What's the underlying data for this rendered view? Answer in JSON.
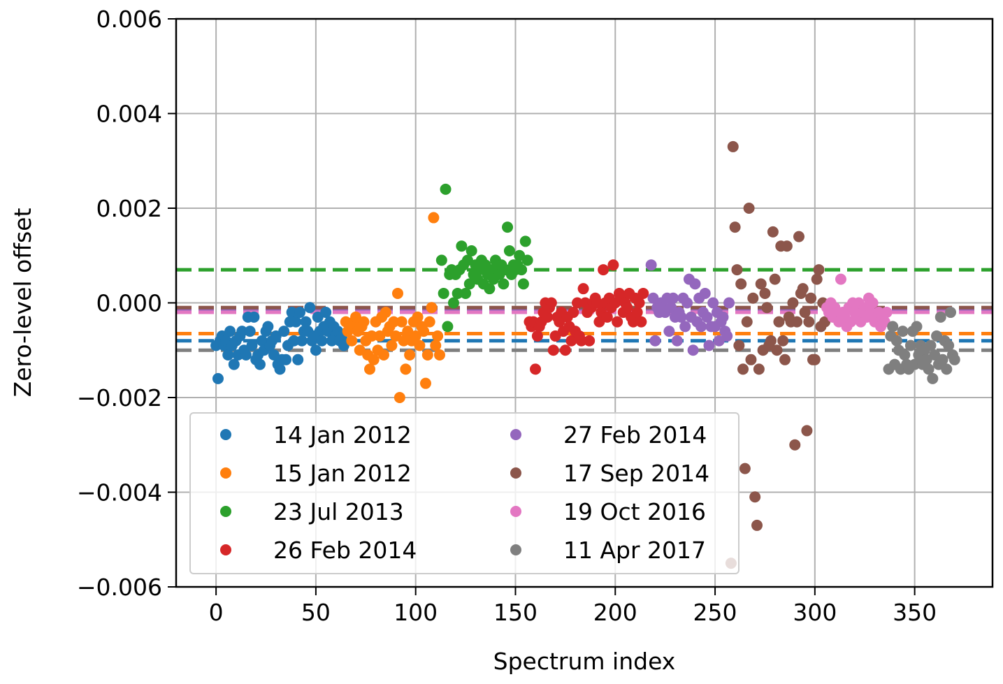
{
  "chart_data": {
    "type": "scatter",
    "title": "",
    "xlabel": "Spectrum index",
    "ylabel": "Zero-level offset",
    "xlim": [
      -20,
      389
    ],
    "ylim": [
      -0.006,
      0.006
    ],
    "xticks": [
      0,
      50,
      100,
      150,
      200,
      250,
      300,
      350
    ],
    "yticks": [
      -0.006,
      -0.004,
      -0.002,
      0.0,
      0.002,
      0.004,
      0.006
    ],
    "xtick_labels": [
      "0",
      "50",
      "100",
      "150",
      "200",
      "250",
      "300",
      "350"
    ],
    "ytick_labels": [
      "−0.006",
      "−0.004",
      "−0.002",
      "0.000",
      "0.002",
      "0.004",
      "0.006"
    ],
    "grid": true,
    "legend": {
      "placement": "lower-left",
      "columns": 2
    },
    "series": [
      {
        "name": "14 Jan 2012",
        "color": "#1f77b4",
        "mean": -0.0008,
        "x": [
          0,
          1,
          2,
          3,
          4,
          5,
          6,
          7,
          8,
          9,
          10,
          11,
          12,
          13,
          14,
          15,
          16,
          17,
          18,
          19,
          20,
          21,
          22,
          23,
          24,
          25,
          26,
          27,
          28,
          29,
          30,
          31,
          32,
          33,
          34,
          35,
          36,
          37,
          38,
          39,
          40,
          41,
          42,
          43,
          44,
          45,
          46,
          47,
          48,
          49,
          50,
          51,
          52,
          53,
          54,
          55,
          56,
          57,
          58,
          59,
          60,
          61,
          62,
          63,
          64
        ],
        "y": [
          -0.0009,
          -0.0016,
          -0.0008,
          -0.0007,
          -0.0009,
          -0.0008,
          -0.0011,
          -0.0006,
          -0.0009,
          -0.0013,
          -0.0008,
          -0.0011,
          -0.0007,
          -0.0006,
          -0.001,
          -0.0011,
          -0.0003,
          -0.0006,
          -0.0009,
          -0.0003,
          -0.0012,
          -0.0011,
          -0.0013,
          -0.0008,
          -0.001,
          -0.0006,
          -0.0005,
          -0.0009,
          -0.0008,
          -0.0011,
          -0.0007,
          -0.0013,
          -0.0014,
          -0.0012,
          -0.0006,
          -0.0012,
          -0.0009,
          -0.0004,
          -0.0002,
          -0.0008,
          -0.0004,
          -0.0012,
          -0.0002,
          -0.0008,
          -0.0006,
          -0.0004,
          -0.0006,
          -0.0001,
          -0.0008,
          -0.0007,
          -0.001,
          -0.0003,
          -0.0006,
          -0.0008,
          -0.0005,
          -0.0002,
          -0.0006,
          -0.0004,
          -0.0008,
          -0.0005,
          -0.0007,
          -0.0006,
          -0.0008,
          -0.0007,
          -0.0009
        ]
      },
      {
        "name": "15 Jan 2012",
        "color": "#ff7f0e",
        "mean": -0.00065,
        "x": [
          65,
          66,
          67,
          68,
          69,
          70,
          71,
          72,
          73,
          74,
          75,
          76,
          77,
          78,
          79,
          80,
          81,
          82,
          83,
          84,
          85,
          86,
          87,
          88,
          89,
          90,
          91,
          92,
          93,
          94,
          95,
          96,
          97,
          98,
          99,
          100,
          101,
          102,
          103,
          104,
          105,
          106,
          107,
          108,
          109,
          110,
          111,
          112
        ],
        "y": [
          -0.0004,
          -0.0006,
          -0.0005,
          -0.0008,
          -0.0004,
          -0.0003,
          -0.0006,
          -0.001,
          -0.0005,
          -0.0004,
          -0.0008,
          -0.0011,
          -0.0014,
          -0.0007,
          -0.0012,
          -0.0004,
          -0.001,
          -0.0007,
          -0.0003,
          -0.0011,
          -0.0002,
          -0.0006,
          -0.0005,
          -0.0009,
          -0.0004,
          -0.0007,
          0.0002,
          -0.002,
          -0.0004,
          -0.0008,
          -0.0014,
          -0.0006,
          -0.0011,
          -0.0008,
          -0.0004,
          -0.0007,
          -0.0003,
          -0.0009,
          -0.0005,
          -0.0006,
          -0.0017,
          -0.0011,
          -0.0004,
          -0.0001,
          0.0018,
          -0.0009,
          -0.0007,
          -0.0011
        ]
      },
      {
        "name": "23 Jul 2013",
        "color": "#2ca02c",
        "mean": 0.0007,
        "x": [
          113,
          114,
          115,
          116,
          117,
          118,
          119,
          120,
          121,
          122,
          123,
          124,
          125,
          126,
          127,
          128,
          129,
          130,
          131,
          132,
          133,
          134,
          135,
          136,
          137,
          138,
          139,
          140,
          141,
          142,
          143,
          144,
          145,
          146,
          147,
          148,
          149,
          150,
          151,
          152,
          153,
          154,
          155,
          156
        ],
        "y": [
          0.0009,
          0.0002,
          0.0024,
          -0.0005,
          0.0006,
          0.0007,
          0.0,
          0.0006,
          0.0002,
          0.0007,
          0.0012,
          0.0008,
          0.0002,
          0.0009,
          0.0004,
          0.0011,
          0.0006,
          0.0008,
          0.0005,
          0.0007,
          0.0009,
          0.0004,
          0.0008,
          0.0006,
          0.0003,
          0.0007,
          0.0005,
          0.0009,
          0.0008,
          0.0006,
          0.0008,
          0.0004,
          0.0007,
          0.0016,
          0.0011,
          0.0006,
          0.0008,
          0.0007,
          0.0008,
          0.001,
          0.0007,
          0.0004,
          0.0013,
          0.0009
        ]
      },
      {
        "name": "26 Feb 2014",
        "color": "#d62728",
        "mean": -0.0002,
        "x": [
          157,
          158,
          159,
          160,
          161,
          162,
          163,
          164,
          165,
          166,
          167,
          168,
          169,
          170,
          171,
          172,
          173,
          174,
          175,
          176,
          177,
          178,
          179,
          180,
          181,
          182,
          183,
          184,
          185,
          186,
          187,
          188,
          189,
          190,
          191,
          192,
          193,
          194,
          195,
          196,
          197,
          198,
          199,
          200,
          201,
          202,
          203,
          204,
          205,
          206,
          207,
          208,
          209,
          210,
          211,
          212,
          213,
          214
        ],
        "y": [
          -0.0004,
          -0.0005,
          -0.0004,
          -0.0014,
          -0.0007,
          -0.0005,
          -0.0004,
          -0.0002,
          0.0,
          -0.0003,
          -0.0001,
          0.0,
          -0.001,
          -0.0007,
          -0.0003,
          -0.0004,
          -0.0002,
          -0.0006,
          -0.001,
          -0.0003,
          -0.0005,
          -0.0008,
          -0.0002,
          -0.0006,
          0.0,
          -0.0007,
          -0.0008,
          0.0003,
          0.0,
          -0.0002,
          -0.0008,
          -0.0001,
          0.0,
          0.0001,
          0.0,
          -0.0004,
          -0.0002,
          0.0007,
          0.0,
          -0.0003,
          0.0001,
          -0.0001,
          0.0008,
          0.0,
          -0.0004,
          0.0002,
          0.0001,
          -0.0002,
          0.0,
          -0.0001,
          0.0002,
          -0.0003,
          -0.0004,
          0.0001,
          -0.0002,
          0.0,
          -0.0004,
          0.0002
        ]
      },
      {
        "name": "27 Feb 2014",
        "color": "#9467bd",
        "mean": -0.00015,
        "x": [
          218,
          219,
          220,
          221,
          222,
          223,
          224,
          225,
          226,
          227,
          228,
          229,
          230,
          231,
          232,
          233,
          234,
          235,
          236,
          237,
          238,
          239,
          240,
          241,
          242,
          243,
          244,
          245,
          246,
          247,
          248,
          249,
          250,
          251,
          252,
          253,
          254,
          255,
          256,
          257
        ],
        "y": [
          0.0008,
          0.0001,
          -0.0008,
          -0.0001,
          -0.0002,
          0.0,
          -0.0001,
          -0.0002,
          0.0001,
          -0.0006,
          -0.0001,
          0.0001,
          -0.0003,
          -0.0008,
          -0.0002,
          -0.0003,
          0.0001,
          -0.0005,
          0.0,
          0.0005,
          -0.0003,
          -0.001,
          0.0004,
          -0.0004,
          0.0001,
          -0.0005,
          -0.0002,
          0.0002,
          -0.0003,
          -0.0009,
          -0.0005,
          0.0,
          -0.0005,
          -0.0002,
          -0.0008,
          -0.0004,
          -0.0003,
          -0.0006,
          -0.0007,
          0.0
        ]
      },
      {
        "name": "17 Sep 2014",
        "color": "#8c564b",
        "mean": -0.0001,
        "x": [
          258,
          259,
          260,
          261,
          262,
          263,
          264,
          265,
          266,
          267,
          268,
          269,
          270,
          271,
          272,
          273,
          274,
          275,
          276,
          277,
          278,
          279,
          280,
          281,
          282,
          283,
          284,
          285,
          286,
          287,
          288,
          289,
          290,
          291,
          292,
          293,
          294,
          295,
          296,
          297,
          298,
          299,
          300,
          301,
          302,
          303,
          304,
          305
        ],
        "y": [
          -0.0055,
          0.0033,
          0.0016,
          0.0007,
          -0.0009,
          0.0004,
          -0.0014,
          -0.0035,
          -0.0004,
          0.002,
          -0.0012,
          0.0001,
          -0.0041,
          -0.0047,
          -0.0014,
          0.0004,
          -0.001,
          0.0002,
          -0.0001,
          -0.0009,
          -0.0008,
          0.0015,
          0.0005,
          -0.001,
          -0.0004,
          0.0012,
          -0.0008,
          -0.0012,
          0.0012,
          -0.0003,
          -0.0004,
          0.0,
          -0.003,
          -0.0004,
          0.0014,
          0.0002,
          0.0003,
          -0.0002,
          -0.0027,
          -0.0004,
          0.0001,
          -0.0012,
          -0.0012,
          0.0005,
          0.0007,
          -0.0005,
          0.0,
          -0.0004
        ]
      },
      {
        "name": "19 Oct 2016",
        "color": "#e377c2",
        "mean": -0.0002,
        "x": [
          306,
          307,
          308,
          309,
          310,
          311,
          312,
          313,
          314,
          315,
          316,
          317,
          318,
          319,
          320,
          321,
          322,
          323,
          324,
          325,
          326,
          327,
          328,
          329,
          330,
          331,
          332,
          333,
          334,
          335,
          336
        ],
        "y": [
          -0.0001,
          -0.0002,
          0.0,
          -0.0003,
          -0.0001,
          -0.0002,
          -0.0004,
          0.0005,
          -0.0002,
          -0.0003,
          -0.0005,
          -0.0001,
          -0.0004,
          0.0,
          -0.0002,
          -0.0003,
          0.0,
          -0.0004,
          -0.0002,
          -0.0001,
          -0.0003,
          0.0001,
          -0.0002,
          0.0,
          -0.0004,
          -0.0003,
          -0.0002,
          -0.0005,
          -0.0003,
          -0.0004,
          -0.0002
        ]
      },
      {
        "name": "11 Apr 2017",
        "color": "#7f7f7f",
        "mean": -0.001,
        "x": [
          337,
          338,
          339,
          340,
          341,
          342,
          343,
          344,
          345,
          346,
          347,
          348,
          349,
          350,
          351,
          352,
          353,
          354,
          355,
          356,
          357,
          358,
          359,
          360,
          361,
          362,
          363,
          364,
          365,
          366,
          367,
          368,
          369,
          370
        ],
        "y": [
          -0.0014,
          -0.0007,
          -0.0005,
          -0.0013,
          -0.0008,
          -0.001,
          -0.0014,
          -0.0006,
          -0.0011,
          -0.0013,
          -0.0014,
          -0.0009,
          -0.0006,
          -0.0013,
          -0.0005,
          -0.0011,
          -0.0009,
          -0.0013,
          -0.001,
          -0.0012,
          -0.0014,
          -0.0009,
          -0.0016,
          -0.0011,
          -0.0007,
          -0.0013,
          -0.0003,
          -0.0012,
          -0.0008,
          -0.0014,
          -0.0009,
          -0.0002,
          -0.0011,
          -0.0012
        ]
      }
    ]
  }
}
